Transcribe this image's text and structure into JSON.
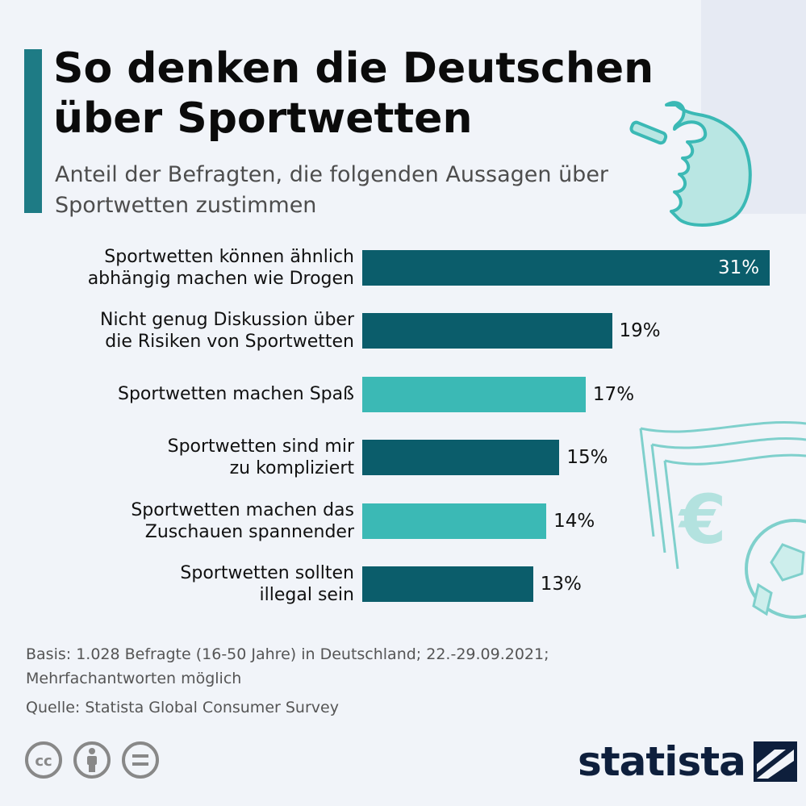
{
  "header": {
    "title": "So denken die Deutschen über Sportwetten",
    "subtitle": "Anteil der Befragten, die folgenden Aussagen über Sportwetten zustimmen"
  },
  "colors": {
    "accent": "#1e7b85",
    "bar_dark": "#0b5d6b",
    "bar_light": "#3bb9b5",
    "background": "#f1f4f9"
  },
  "chart_data": {
    "type": "bar",
    "orientation": "horizontal",
    "categories": [
      "Sportwetten können ähnlich abhängig machen wie Drogen",
      "Nicht genug Diskussion über die Risiken von Sportwetten",
      "Sportwetten machen Spaß",
      "Sportwetten sind mir zu kompliziert",
      "Sportwetten machen das Zuschauen spannender",
      "Sportwetten sollten illegal sein"
    ],
    "label_lines": [
      [
        "Sportwetten können ähnlich",
        "abhängig machen wie Drogen"
      ],
      [
        "Nicht genug Diskussion über",
        "die Risiken von Sportwetten"
      ],
      [
        "Sportwetten machen Spaß"
      ],
      [
        "Sportwetten sind mir",
        "zu kompliziert"
      ],
      [
        "Sportwetten machen das",
        "Zuschauen spannender"
      ],
      [
        "Sportwetten sollten",
        "illegal sein"
      ]
    ],
    "values": [
      31,
      19,
      17,
      15,
      14,
      13
    ],
    "value_labels": [
      "31%",
      "19%",
      "17%",
      "15%",
      "14%",
      "13%"
    ],
    "bar_colors": [
      "#0b5d6b",
      "#0b5d6b",
      "#3bb9b5",
      "#0b5d6b",
      "#3bb9b5",
      "#0b5d6b"
    ],
    "unit": "%",
    "xlim": [
      0,
      31
    ],
    "grid": false,
    "legend": "none"
  },
  "footer": {
    "note_line1": "Basis: 1.028 Befragte (16-50 Jahre) in Deutschland; 22.-29.09.2021;",
    "note_line2": "Mehrfachantworten möglich",
    "source": "Quelle: Statista Global Consumer Survey",
    "license_icons": [
      "cc-icon",
      "attribution-icon",
      "no-derivatives-icon"
    ],
    "brand": "statista"
  }
}
